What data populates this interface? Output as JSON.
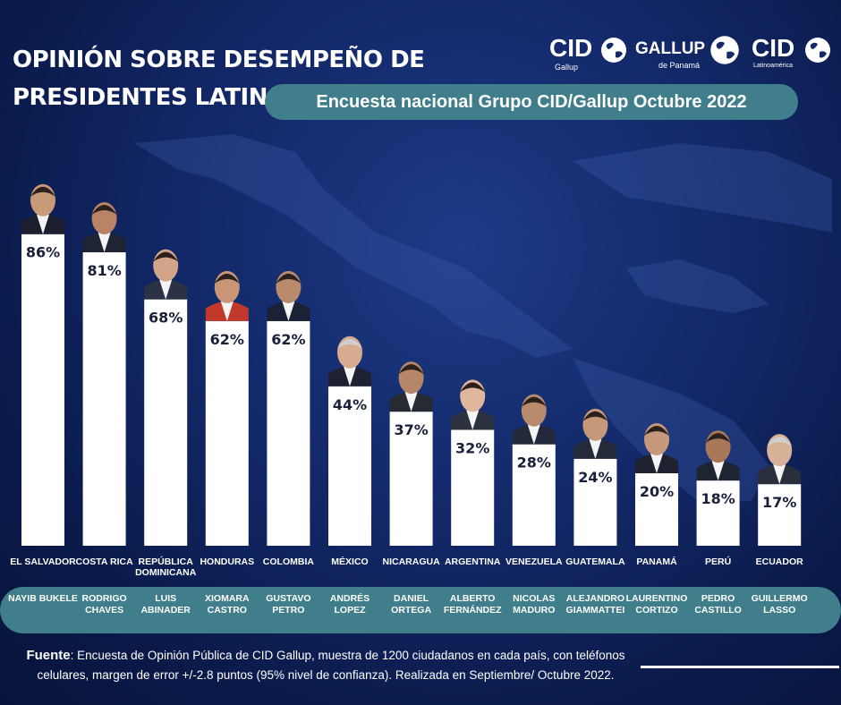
{
  "header": {
    "title": "OPINIÓN SOBRE DESEMPEÑO DE PRESIDENTES LATINOAMERICANOS",
    "subtitle": "Encuesta nacional Grupo CID/Gallup Octubre 2022"
  },
  "logos": {
    "cid_gallup": {
      "main": "CID",
      "sub": "Gallup"
    },
    "gallup_panama": {
      "main": "GALLUP",
      "sub": "de Panamá"
    },
    "cid_latam": {
      "main": "CID",
      "sub": "Latinoamérica"
    }
  },
  "colors": {
    "background": "#13296a",
    "band": "#3f7e8a",
    "bar": "#ffffff",
    "value_text": "#1a1f3a"
  },
  "chart_data": {
    "type": "bar",
    "ylim": [
      0,
      100
    ],
    "categories": [
      "EL SALVADOR",
      "COSTA RICA",
      "REPÚBLICA DOMINICANA",
      "HONDURAS",
      "COLOMBIA",
      "MÉXICO",
      "NICARAGUA",
      "ARGENTINA",
      "VENEZUELA",
      "GUATEMALA",
      "PANAMÁ",
      "PERÚ",
      "ECUADOR"
    ],
    "presidents": [
      "NAYIB BUKELE",
      "RODRIGO CHAVES",
      "LUIS ABINADER",
      "XIOMARA CASTRO",
      "GUSTAVO PETRO",
      "ANDRÉS LOPEZ",
      "DANIEL ORTEGA",
      "ALBERTO FERNÁNDEZ",
      "NICOLAS MADURO",
      "ALEJANDRO GIAMMATTEI",
      "LAURENTINO CORTIZO",
      "PEDRO CASTILLO",
      "GUILLERMO LASSO"
    ],
    "values": [
      86,
      81,
      68,
      62,
      62,
      44,
      37,
      32,
      28,
      24,
      20,
      18,
      17
    ],
    "value_labels": [
      "86%",
      "81%",
      "68%",
      "62%",
      "62%",
      "44%",
      "37%",
      "32%",
      "28%",
      "24%",
      "20%",
      "18%",
      "17%"
    ]
  },
  "source": {
    "label": "Fuente",
    "text": ": Encuesta de Opinión Pública de CID Gallup, muestra de 1200 ciudadanos en cada país, con teléfonos celulares, margen de error +/-2.8 puntos (95% nivel de confianza).  Realizada en Septiembre/ Octubre 2022."
  }
}
